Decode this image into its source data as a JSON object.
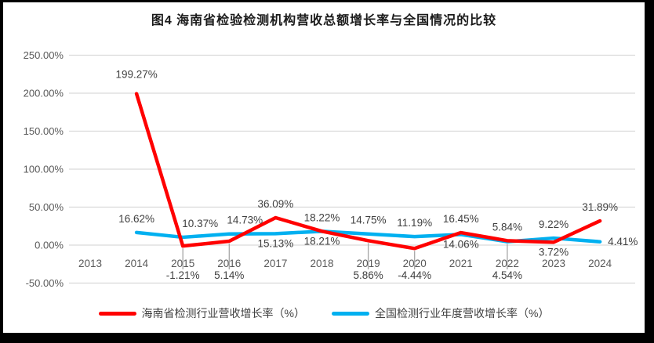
{
  "chart_data": {
    "type": "line",
    "title": "图4 海南省检验检测机构营收总额增长率与全国情况的比较",
    "categories": [
      "2013",
      "2014",
      "2015",
      "2016",
      "2017",
      "2018",
      "2019",
      "2020",
      "2021",
      "2022",
      "2023",
      "2024"
    ],
    "series": [
      {
        "id": "hainan",
        "name": "海南省检测行业营收增长率（%）",
        "color": "#ff0000",
        "values": [
          null,
          199.27,
          -1.21,
          5.14,
          36.09,
          18.22,
          5.86,
          -4.44,
          16.45,
          5.84,
          3.72,
          31.89
        ],
        "label_pos": [
          null,
          "above,0,-7",
          "low",
          "low",
          "above",
          "above",
          "low",
          "low",
          "above",
          "above",
          "below",
          "above"
        ]
      },
      {
        "id": "national",
        "name": "全国检测行业年度营收增长率（%）",
        "color": "#00b0f0",
        "values": [
          null,
          16.62,
          10.37,
          14.73,
          15.13,
          18.21,
          14.75,
          11.19,
          14.06,
          4.54,
          9.22,
          4.41
        ],
        "label_pos": [
          null,
          "above",
          "above,22,0",
          "above,20,0",
          "below",
          "below",
          "above",
          "above",
          "below",
          "low",
          "above",
          "right"
        ]
      }
    ],
    "ylim": [
      -50,
      250
    ],
    "ytick_values": [
      250,
      200,
      150,
      100,
      50,
      0,
      -50
    ],
    "ytick_suffix": "%",
    "value_suffix": "%",
    "decimals": 2,
    "grid": true,
    "legend_position": "bottom",
    "colors": {
      "gridline": "#d9d9d9",
      "axis_text": "#595959",
      "label_text": "#404040",
      "leader": "#a6a6a6",
      "title_text": "#1a1a1a"
    }
  }
}
